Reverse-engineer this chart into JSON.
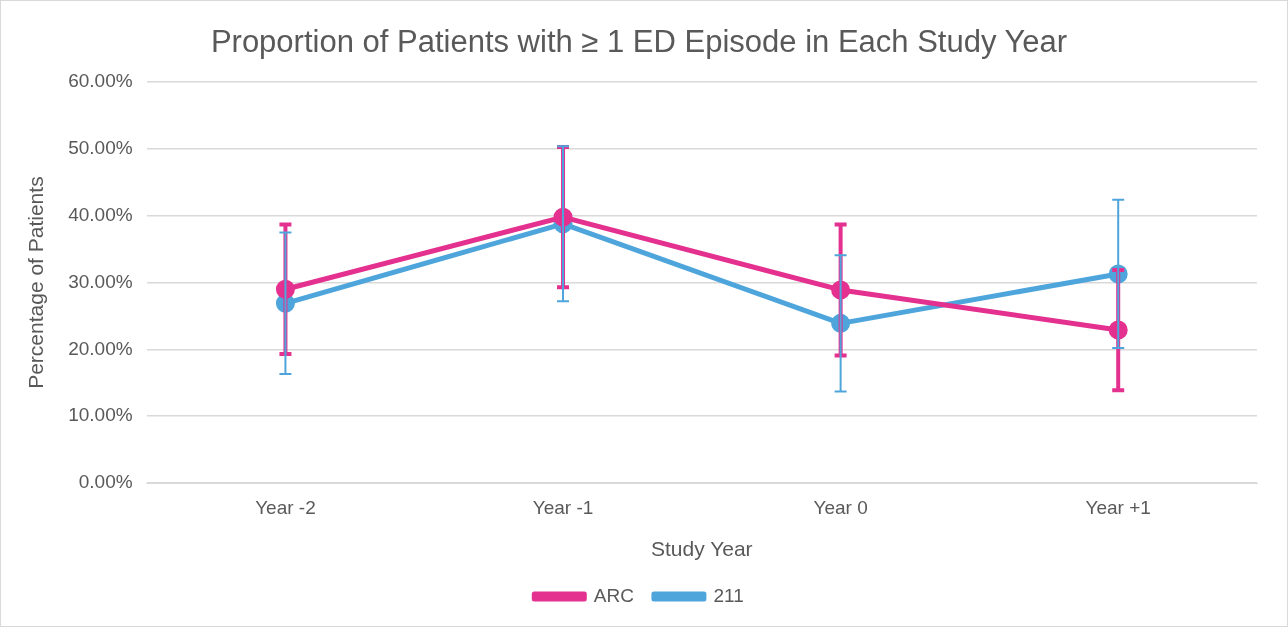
{
  "chart_data": {
    "type": "line",
    "title": "Proportion of Patients with ≥ 1 ED Episode in Each Study Year",
    "xlabel": "Study Year",
    "ylabel": "Percentage of Patients",
    "categories": [
      "Year -2",
      "Year -1",
      "Year 0",
      "Year +1"
    ],
    "series": [
      {
        "name": "ARC",
        "color": "#e4308f",
        "values": [
          29,
          39.8,
          28.9,
          22.9
        ],
        "errors": [
          9.7,
          10.5,
          9.8,
          9
        ]
      },
      {
        "name": "211",
        "color": "#4ea5db",
        "values": [
          26.9,
          38.8,
          23.9,
          31.3
        ],
        "errors": [
          10.6,
          11.6,
          10.2,
          11.1
        ]
      }
    ],
    "ylim": [
      0,
      60
    ],
    "yticks": [
      {
        "value": 0,
        "label": "0.00%"
      },
      {
        "value": 10,
        "label": "10.00%"
      },
      {
        "value": 20,
        "label": "20.00%"
      },
      {
        "value": 30,
        "label": "30.00%"
      },
      {
        "value": 40,
        "label": "40.00%"
      },
      {
        "value": 50,
        "label": "50.00%"
      },
      {
        "value": 60,
        "label": "60.00%"
      }
    ],
    "grid": "y",
    "legend": "bottom",
    "marker": "circle",
    "line_style": "solid"
  }
}
